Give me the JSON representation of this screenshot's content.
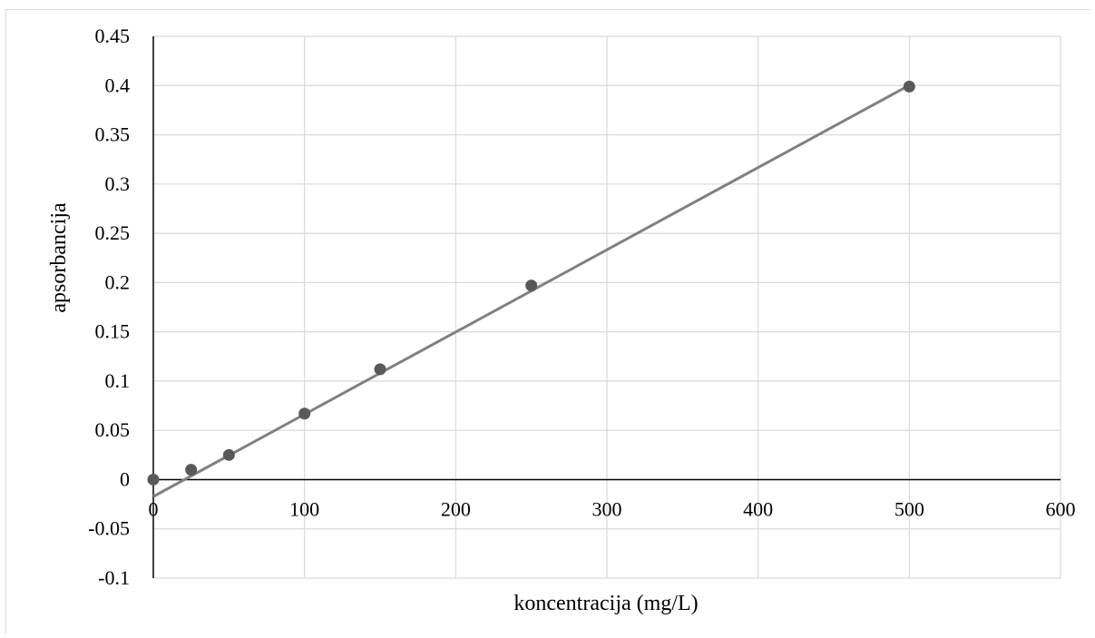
{
  "chart_data": {
    "type": "scatter",
    "title": "",
    "xlabel": "koncentracija (mg/L)",
    "ylabel": "apsorbancija",
    "xlim": [
      0,
      600
    ],
    "ylim": [
      -0.1,
      0.45
    ],
    "x_ticks": [
      0,
      100,
      200,
      300,
      400,
      500,
      600
    ],
    "x_tick_labels": [
      "0",
      "100",
      "200",
      "300",
      "400",
      "500",
      "600"
    ],
    "y_ticks": [
      -0.1,
      -0.05,
      0,
      0.05,
      0.1,
      0.15,
      0.2,
      0.25,
      0.3,
      0.35,
      0.4,
      0.45
    ],
    "y_tick_labels": [
      "-0.1",
      "-0.05",
      "0",
      "0.05",
      "0.1",
      "0.15",
      "0.2",
      "0.25",
      "0.3",
      "0.35",
      "0.4",
      "0.45"
    ],
    "grid": true,
    "legend": false,
    "series": [
      {
        "x": [
          0,
          25,
          50,
          100,
          150,
          250,
          500
        ],
        "y": [
          0,
          0.01,
          0.025,
          0.067,
          0.112,
          0.197,
          0.399
        ]
      }
    ],
    "trendline": {
      "type": "linear",
      "x": [
        0,
        500
      ],
      "y": [
        -0.0172,
        0.4003
      ]
    },
    "colors": {
      "marker": "#595959",
      "trendline": "#808080",
      "grid": "#d9d9d9",
      "axis": "#000000"
    }
  }
}
